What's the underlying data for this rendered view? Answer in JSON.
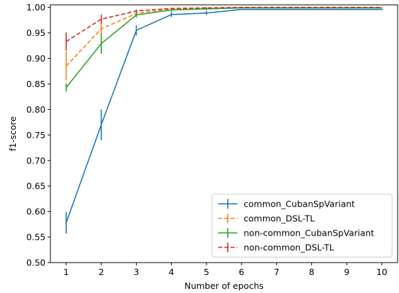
{
  "chart_data": {
    "type": "line",
    "title": "",
    "xlabel": "Number of epochs",
    "ylabel": "f1-score",
    "x": [
      1,
      2,
      3,
      4,
      5,
      6,
      7,
      8,
      9,
      10
    ],
    "xticks": [
      "1",
      "2",
      "3",
      "4",
      "5",
      "6",
      "7",
      "8",
      "9",
      "10"
    ],
    "yticks": [
      "0.50",
      "0.55",
      "0.60",
      "0.65",
      "0.70",
      "0.75",
      "0.80",
      "0.85",
      "0.90",
      "0.95",
      "1.00"
    ],
    "xlim": [
      0.55,
      10.45
    ],
    "ylim": [
      0.5,
      1.005
    ],
    "grid": false,
    "legend_position": "bottom-right",
    "series": [
      {
        "name": "common_CubanSpVariant",
        "color": "#1f77b4",
        "dashed": false,
        "values": [
          0.578,
          0.77,
          0.955,
          0.986,
          0.989,
          0.996,
          0.996,
          0.996,
          0.996,
          0.996
        ],
        "errors": [
          0.021,
          0.03,
          0.01,
          0.005,
          0.004,
          0.001,
          0.001,
          0.001,
          0.001,
          0.001
        ]
      },
      {
        "name": "common_DSL-TL",
        "color": "#ff7f0e",
        "dashed": true,
        "values": [
          0.885,
          0.958,
          0.988,
          0.997,
          0.999,
          1.0,
          1.0,
          1.0,
          1.0,
          1.0
        ],
        "errors": [
          0.028,
          0.012,
          0.004,
          0.002,
          0.001,
          0.0,
          0.0,
          0.0,
          0.0,
          0.0
        ]
      },
      {
        "name": "non-common_CubanSpVariant",
        "color": "#2ca02c",
        "dashed": false,
        "values": [
          0.843,
          0.929,
          0.985,
          0.995,
          0.997,
          0.999,
          0.999,
          0.999,
          0.999,
          0.999
        ],
        "errors": [
          0.008,
          0.02,
          0.005,
          0.003,
          0.002,
          0.001,
          0.001,
          0.001,
          0.001,
          0.001
        ]
      },
      {
        "name": "non-common_DSL-TL",
        "color": "#d62728",
        "dashed": true,
        "values": [
          0.933,
          0.977,
          0.993,
          0.998,
          0.999,
          1.0,
          1.0,
          1.0,
          1.0,
          1.0
        ],
        "errors": [
          0.018,
          0.009,
          0.003,
          0.001,
          0.001,
          0.0,
          0.0,
          0.0,
          0.0,
          0.0
        ]
      }
    ]
  }
}
